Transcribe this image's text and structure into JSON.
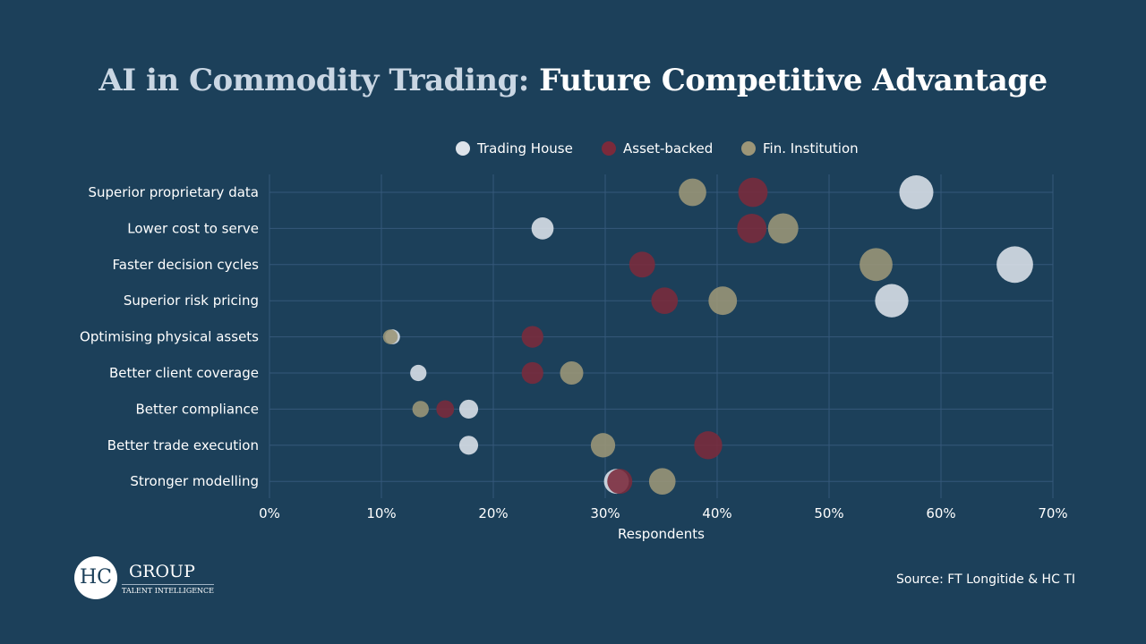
{
  "chart_data": {
    "type": "scatter",
    "title_part1": "AI in Commodity Trading:",
    "title_part2": "Future Competitive Advantage",
    "xlabel": "Respondents",
    "ylabel": "",
    "xlim": [
      0,
      70
    ],
    "x_ticks": [
      "0%",
      "10%",
      "20%",
      "30%",
      "40%",
      "50%",
      "60%",
      "70%"
    ],
    "grid": true,
    "legend_position": "top",
    "categories": [
      "Superior proprietary data",
      "Lower cost to serve",
      "Faster decision cycles",
      "Superior risk pricing",
      "Optimising physical assets",
      "Better client coverage",
      "Better compliance",
      "Better trade execution",
      "Stronger modelling"
    ],
    "series": [
      {
        "name": "Trading House",
        "color": "#dde3ea",
        "values": [
          57.8,
          24.4,
          66.6,
          55.6,
          11.0,
          13.3,
          17.8,
          17.8,
          31.0
        ]
      },
      {
        "name": "Asset-backed",
        "color": "#7b2a3b",
        "values": [
          43.2,
          43.1,
          33.3,
          35.3,
          23.5,
          23.5,
          15.7,
          39.2,
          31.3
        ]
      },
      {
        "name": "Fin. Institution",
        "color": "#9c9678",
        "values": [
          37.8,
          45.9,
          54.2,
          40.5,
          10.8,
          27.0,
          13.5,
          29.8,
          35.1
        ]
      }
    ],
    "bubble_size": "proportional to value"
  },
  "source": "Source: FT Longitide & HC TI",
  "logo": {
    "mark": "HC",
    "name": "GROUP",
    "sub": "TALENT INTELLIGENCE"
  }
}
